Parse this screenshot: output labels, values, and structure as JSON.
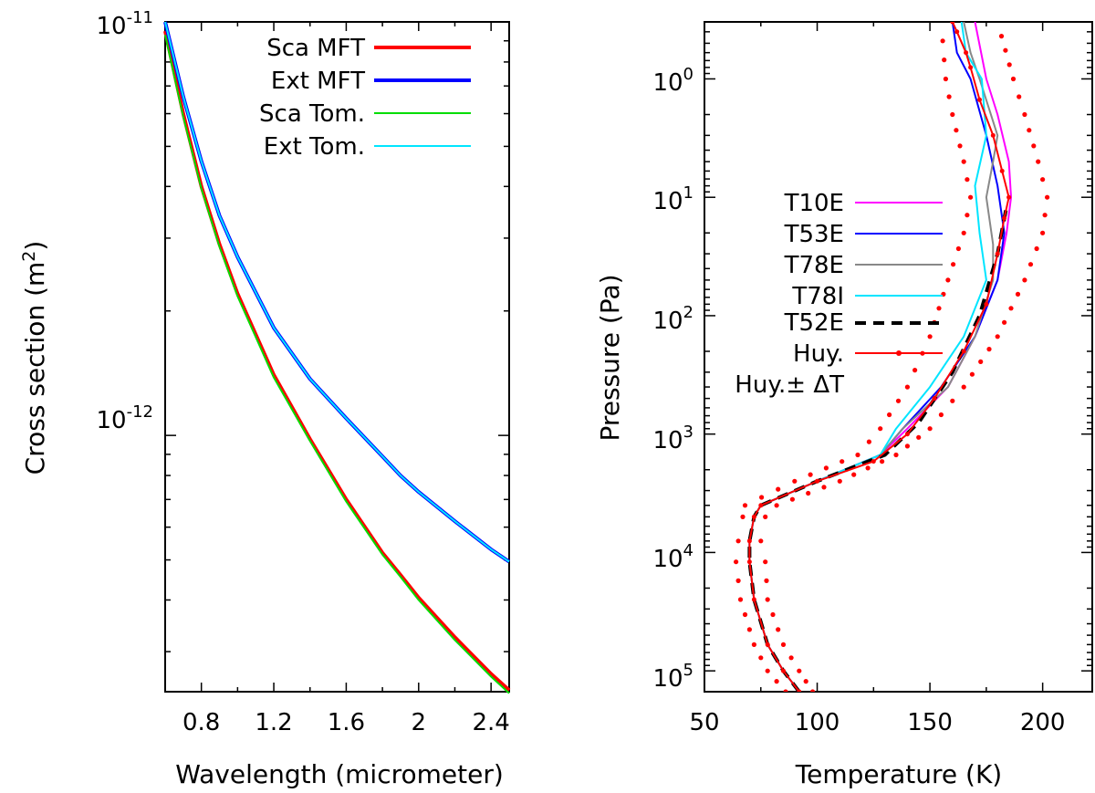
{
  "chart_data": [
    {
      "type": "line",
      "xlabel": "Wavelength (micrometer)",
      "ylabel": "Cross section (m",
      "ylabel_sup": "2",
      "ylabel_close": ")",
      "xlim": [
        0.6,
        2.5
      ],
      "ylim": [
        2.4e-13,
        1e-11
      ],
      "yscale": "log",
      "xticks": [
        0.8,
        1.2,
        1.6,
        2,
        2.4
      ],
      "xtick_labels": [
        "0.8",
        "1.2",
        "1.6",
        "2",
        "2.4"
      ],
      "yticks_major": [
        {
          "value": 1e-11,
          "base": "10",
          "exp": "-11"
        },
        {
          "value": 1e-12,
          "base": "10",
          "exp": "-12"
        }
      ],
      "legend_position": "top-right",
      "series": [
        {
          "name": "Sca MFT",
          "color": "#ff0000",
          "width": 4,
          "x": [
            0.6,
            0.7,
            0.8,
            0.9,
            1.0,
            1.2,
            1.4,
            1.6,
            1.8,
            1.9,
            2.0,
            2.2,
            2.4,
            2.5
          ],
          "y": [
            9.5e-12,
            6e-12,
            4e-12,
            2.9e-12,
            2.2e-12,
            1.4e-12,
            9.8e-13,
            7e-13,
            5.2e-13,
            4.6e-13,
            4.05e-13,
            3.25e-13,
            2.65e-13,
            2.42e-13
          ]
        },
        {
          "name": "Ext MFT",
          "color": "#0000ff",
          "width": 4,
          "x": [
            0.6,
            0.7,
            0.8,
            0.9,
            1.0,
            1.2,
            1.4,
            1.6,
            1.8,
            1.9,
            2.0,
            2.2,
            2.4,
            2.5
          ],
          "y": [
            1e-11,
            6.6e-12,
            4.6e-12,
            3.4e-12,
            2.7e-12,
            1.82e-12,
            1.37e-12,
            1.1e-12,
            8.9e-13,
            8e-13,
            7.3e-13,
            6.2e-13,
            5.3e-13,
            4.95e-13
          ]
        },
        {
          "name": "Sca Tom.",
          "color": "#00dd00",
          "width": 2,
          "x": [
            0.6,
            0.7,
            0.8,
            0.9,
            1.0,
            1.2,
            1.4,
            1.6,
            1.8,
            1.9,
            2.0,
            2.2,
            2.4,
            2.5
          ],
          "y": [
            9.3e-12,
            5.9e-12,
            3.95e-12,
            2.86e-12,
            2.17e-12,
            1.38e-12,
            9.7e-13,
            6.92e-13,
            5.15e-13,
            4.55e-13,
            4e-13,
            3.2e-13,
            2.61e-13,
            2.38e-13
          ]
        },
        {
          "name": "Ext Tom.",
          "color": "#00e5ff",
          "width": 2,
          "x": [
            0.6,
            0.7,
            0.8,
            0.9,
            1.0,
            1.2,
            1.4,
            1.6,
            1.8,
            1.9,
            2.0,
            2.2,
            2.4,
            2.5
          ],
          "y": [
            1e-11,
            6.6e-12,
            4.6e-12,
            3.4e-12,
            2.7e-12,
            1.82e-12,
            1.37e-12,
            1.1e-12,
            8.9e-13,
            8e-13,
            7.3e-13,
            6.2e-13,
            5.3e-13,
            4.95e-13
          ]
        }
      ]
    },
    {
      "type": "line",
      "xlabel": "Temperature (K)",
      "ylabel": "Pressure (Pa)",
      "xlim": [
        50,
        222
      ],
      "ylim": [
        0.33,
        150000
      ],
      "yscale": "log",
      "yreversed": true,
      "xticks": [
        50,
        100,
        150,
        200
      ],
      "xtick_labels": [
        "50",
        "100",
        "150",
        "200"
      ],
      "yticks_major": [
        {
          "value": 1,
          "base": "10",
          "exp": "0"
        },
        {
          "value": 10,
          "base": "10",
          "exp": "1"
        },
        {
          "value": 100,
          "base": "10",
          "exp": "2"
        },
        {
          "value": 1000,
          "base": "10",
          "exp": "3"
        },
        {
          "value": 10000,
          "base": "10",
          "exp": "4"
        },
        {
          "value": 100000,
          "base": "10",
          "exp": "5"
        }
      ],
      "legend_position": "center-right",
      "series": [
        {
          "name": "T10E",
          "color": "#ff00ff",
          "style": "solid",
          "T": [
            92,
            85,
            78,
            72,
            70,
            70,
            72,
            75,
            100,
            128,
            140,
            158,
            170,
            180,
            184,
            186,
            185,
            180,
            175,
            170
          ],
          "P": [
            150000,
            100000,
            60000,
            25000,
            12000,
            8000,
            5000,
            4000,
            2500,
            1500,
            900,
            400,
            150,
            50,
            20,
            10,
            5,
            2,
            1,
            0.33
          ]
        },
        {
          "name": "T53E",
          "color": "#0000ff",
          "style": "solid",
          "T": [
            92,
            85,
            78,
            72,
            70,
            70,
            72,
            75,
            100,
            128,
            138,
            155,
            170,
            180,
            183,
            180,
            175,
            168,
            162,
            160
          ],
          "P": [
            150000,
            100000,
            60000,
            25000,
            12000,
            8000,
            5000,
            4000,
            2500,
            1500,
            900,
            400,
            150,
            50,
            20,
            8,
            3,
            1,
            0.6,
            0.33
          ]
        },
        {
          "name": "T78E",
          "color": "#888888",
          "style": "solid",
          "T": [
            92,
            85,
            78,
            72,
            70,
            70,
            72,
            75,
            100,
            128,
            138,
            158,
            170,
            178,
            178,
            175,
            178,
            180,
            172,
            168,
            165
          ],
          "P": [
            150000,
            100000,
            60000,
            25000,
            12000,
            8000,
            5000,
            4000,
            2500,
            1500,
            900,
            400,
            150,
            50,
            25,
            10,
            5,
            3,
            1,
            0.6,
            0.33
          ]
        },
        {
          "name": "T78I",
          "color": "#00e5ff",
          "style": "solid",
          "T": [
            92,
            85,
            78,
            72,
            70,
            70,
            72,
            75,
            100,
            128,
            135,
            150,
            165,
            175,
            172,
            170,
            175,
            173,
            166,
            164
          ],
          "P": [
            150000,
            100000,
            60000,
            25000,
            12000,
            8000,
            5000,
            4000,
            2500,
            1500,
            900,
            400,
            150,
            50,
            20,
            8,
            3,
            1,
            0.6,
            0.33
          ]
        },
        {
          "name": "T52E",
          "color": "#000000",
          "style": "dashed",
          "T": [
            92,
            85,
            78,
            72,
            70,
            70,
            72,
            75,
            100,
            130,
            145,
            160,
            172,
            180,
            184
          ],
          "P": [
            150000,
            100000,
            60000,
            25000,
            12000,
            8000,
            5000,
            4000,
            2500,
            1500,
            800,
            300,
            100,
            30,
            12
          ]
        },
        {
          "name": "Huy.",
          "color": "#ff0000",
          "style": "solid-markers",
          "T": [
            92,
            85,
            78,
            72,
            70,
            70,
            72,
            75,
            100,
            125,
            140,
            152,
            165,
            175,
            180,
            183,
            185,
            182,
            178,
            172,
            168,
            166,
            162,
            160
          ],
          "P": [
            150000,
            100000,
            60000,
            25000,
            12000,
            8000,
            5000,
            4000,
            2500,
            1700,
            1000,
            500,
            200,
            80,
            30,
            15,
            10,
            6,
            3,
            1.5,
            0.8,
            0.6,
            0.4,
            0.33
          ]
        },
        {
          "name": "Huy.± ΔT",
          "color": "#ff0000",
          "style": "dotted",
          "T_minus": [
            86,
            78,
            72,
            66,
            64,
            65,
            67,
            68,
            90,
            118,
            128,
            140,
            150,
            158,
            165,
            168,
            165,
            160,
            157,
            155
          ],
          "T_plus": [
            98,
            92,
            85,
            78,
            77,
            75,
            77,
            82,
            110,
            135,
            150,
            165,
            180,
            192,
            200,
            202,
            198,
            192,
            187,
            180
          ],
          "P": [
            150000,
            100000,
            60000,
            25000,
            12000,
            8000,
            5000,
            4000,
            2500,
            1500,
            900,
            400,
            150,
            50,
            20,
            10,
            5,
            2,
            1,
            0.33
          ]
        }
      ]
    }
  ]
}
